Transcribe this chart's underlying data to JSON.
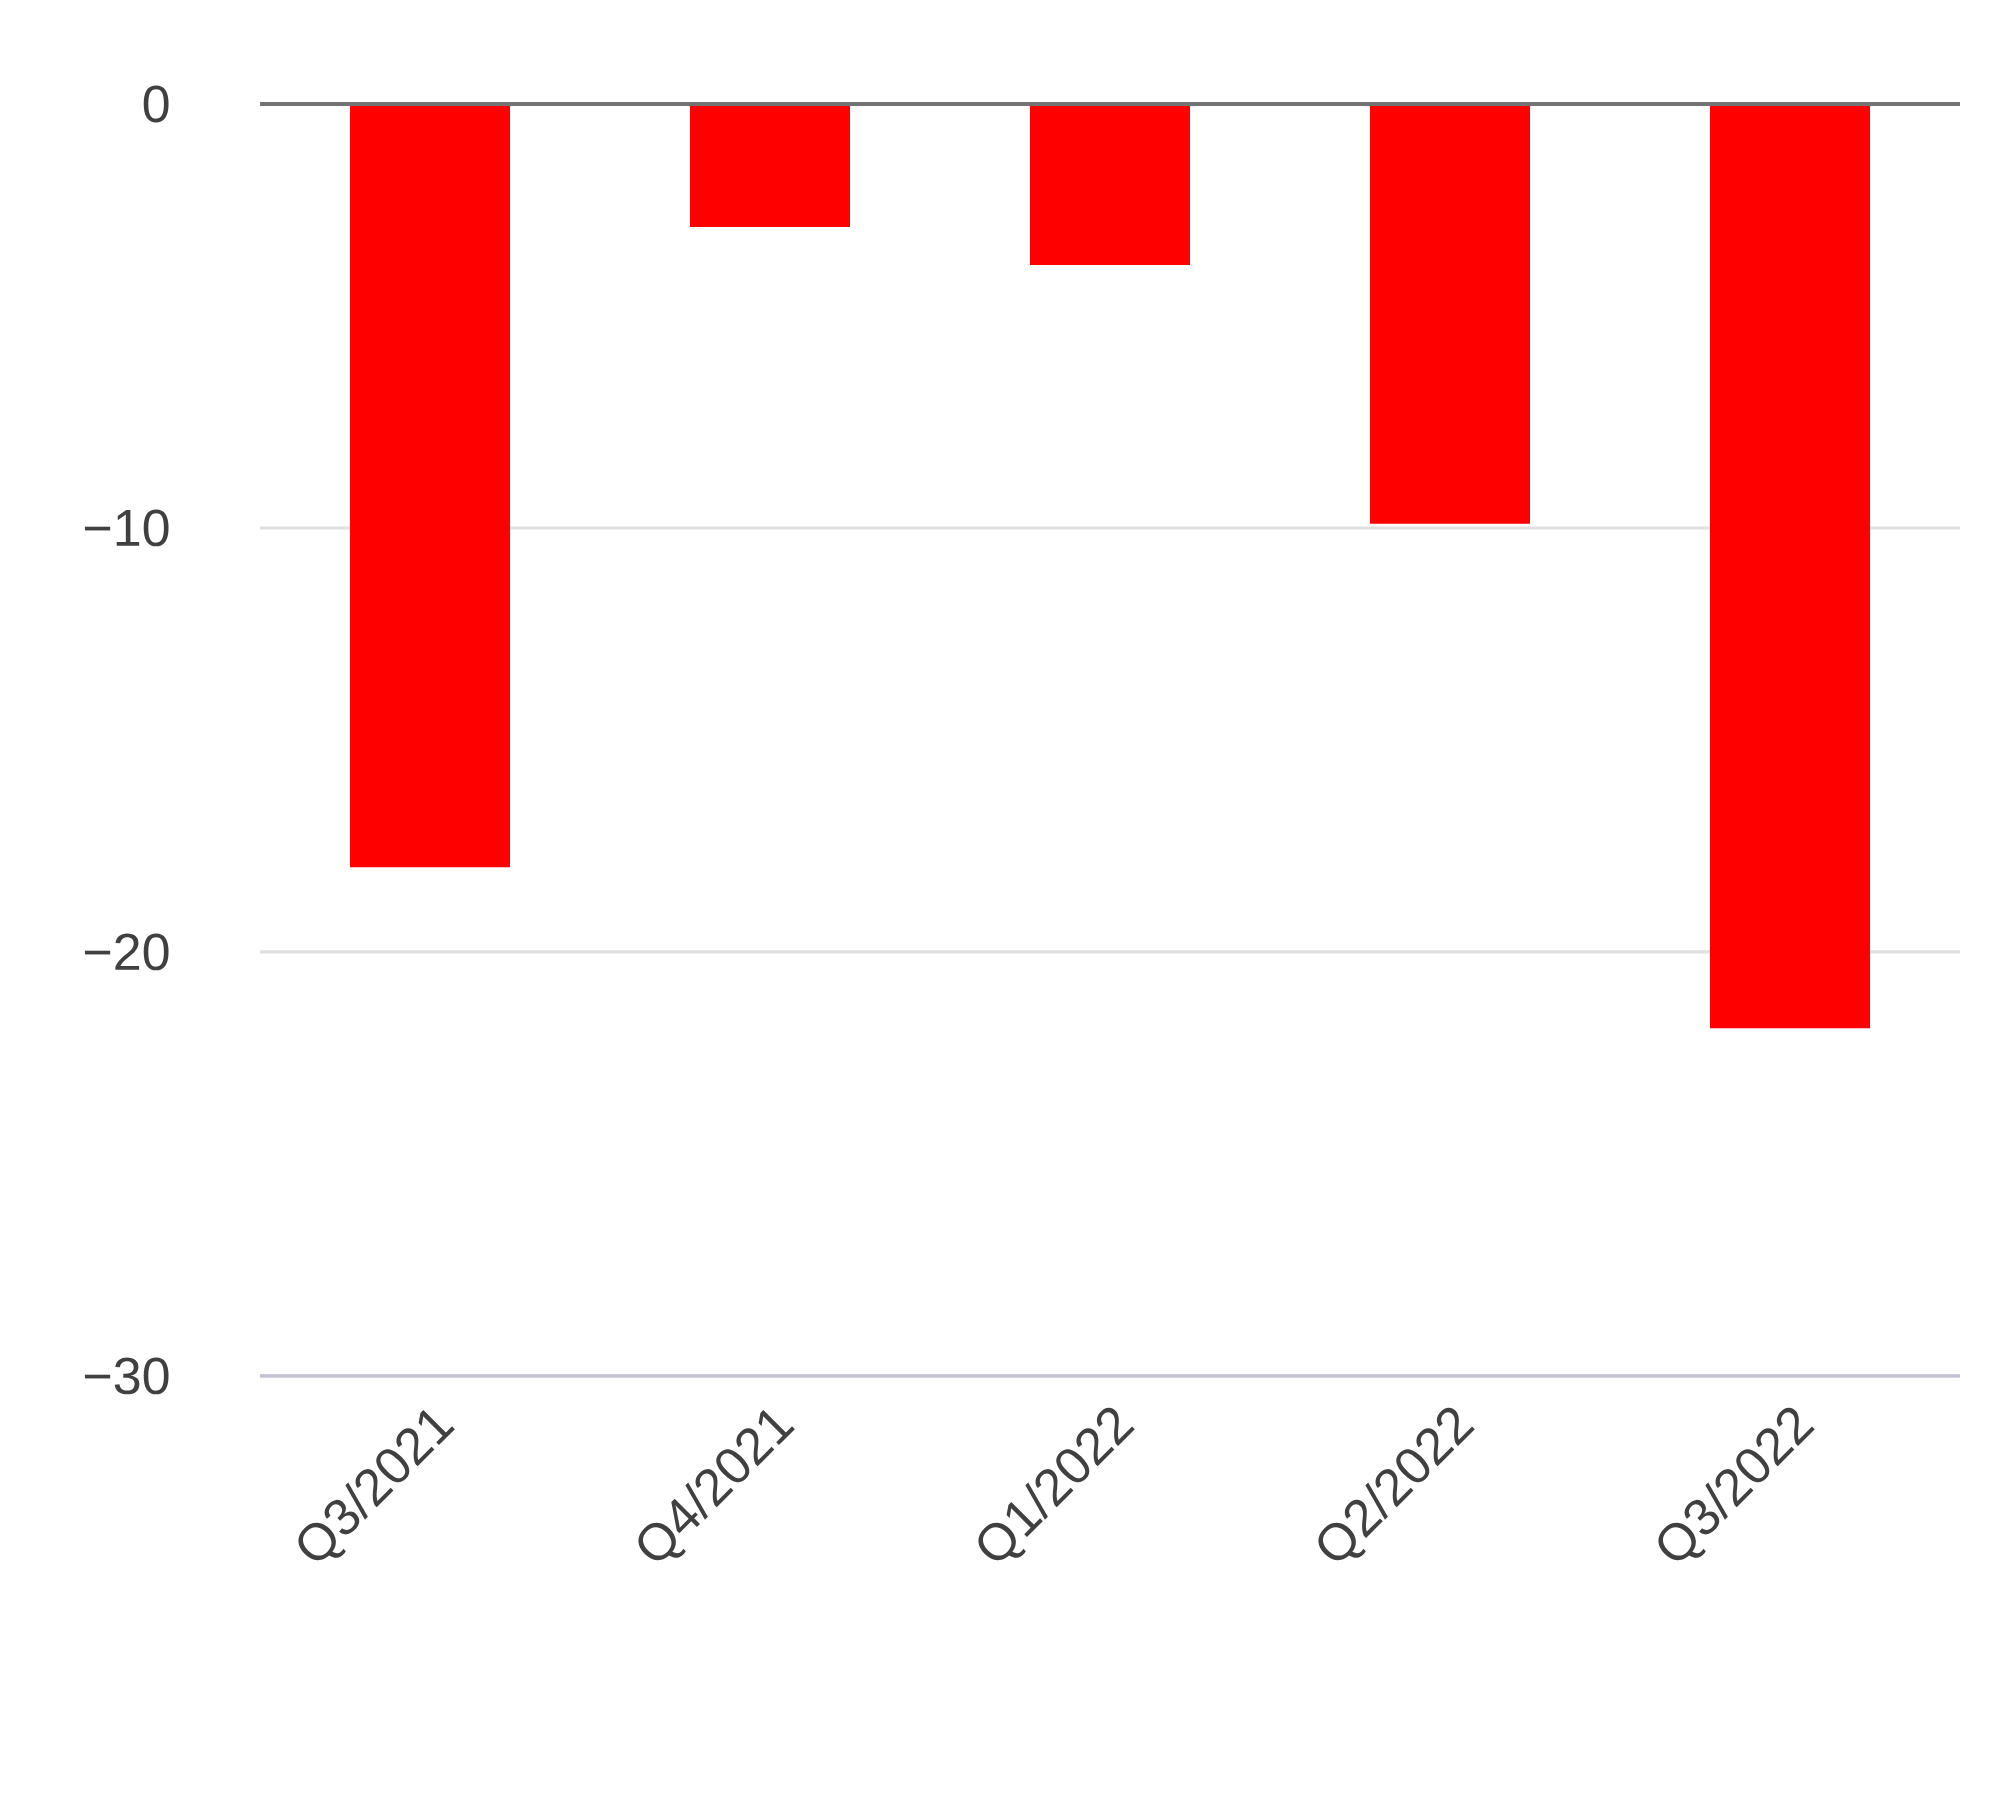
{
  "chart_data": {
    "type": "bar",
    "categories": [
      "Q3/2021",
      "Q4/2021",
      "Q1/2022",
      "Q2/2022",
      "Q3/2022"
    ],
    "values": [
      -18,
      -2.9,
      -3.8,
      -9.9,
      -21.8
    ],
    "color": "#ff0000",
    "ylim": [
      -30,
      0
    ],
    "yticks": [
      {
        "value": -30,
        "label": "−30"
      },
      {
        "value": -20,
        "label": "−20"
      },
      {
        "value": -10,
        "label": "−10"
      },
      {
        "value": 0,
        "label": "0"
      }
    ],
    "grid": "y"
  }
}
